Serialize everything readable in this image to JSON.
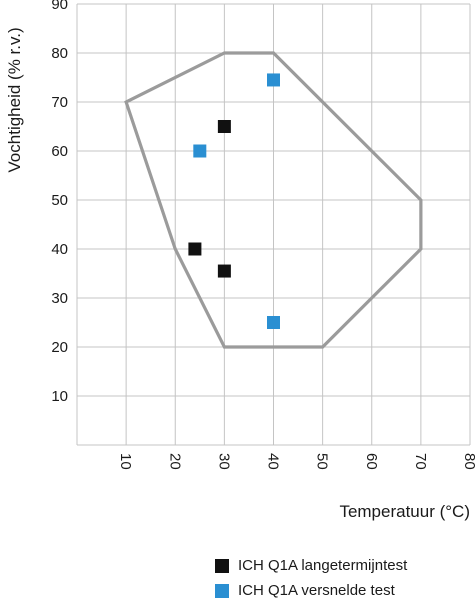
{
  "chart_data": {
    "type": "scatter",
    "title": "",
    "xlabel": "Temperatuur (°C)",
    "ylabel": "Vochtigheid (% r.v.)",
    "xlim": [
      0,
      80
    ],
    "ylim": [
      0,
      90
    ],
    "x_ticks": [
      "10",
      "20",
      "30",
      "40",
      "50",
      "60",
      "70",
      "80"
    ],
    "y_ticks": [
      "10",
      "20",
      "30",
      "40",
      "50",
      "60",
      "70",
      "80",
      "90"
    ],
    "grid": true,
    "region": {
      "color": "#9b9b9b",
      "points": [
        [
          10,
          70
        ],
        [
          30,
          80
        ],
        [
          40,
          80
        ],
        [
          70,
          50
        ],
        [
          70,
          40
        ],
        [
          50,
          20
        ],
        [
          30,
          20
        ],
        [
          20,
          40
        ]
      ]
    },
    "series": [
      {
        "name": "ICH Q1A langetermijntest",
        "color": "#111111",
        "points": [
          [
            30,
            65
          ],
          [
            24,
            40
          ],
          [
            30,
            35.5
          ]
        ]
      },
      {
        "name": "ICH Q1A versnelde test",
        "color": "#2a8fd2",
        "points": [
          [
            40,
            74.5
          ],
          [
            25,
            60
          ],
          [
            40,
            25
          ]
        ]
      }
    ]
  }
}
